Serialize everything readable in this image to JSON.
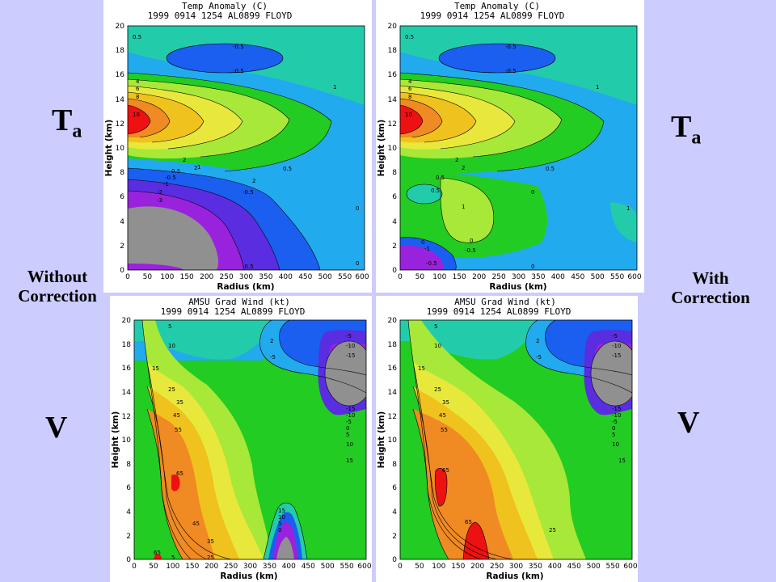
{
  "labels": {
    "ta_symbol": "T",
    "ta_sub": "a",
    "v_symbol": "V",
    "without_line1": "Without",
    "without_line2": "Correction",
    "with_line1": "With",
    "with_line2": "Correction"
  },
  "panels": [
    {
      "id": "ta-without",
      "title1": "Temp Anomaly (C)",
      "title2": "1999 0914 1254 AL0899 FLOYD",
      "xlabel": "Radius (km)",
      "ylabel": "Height (km)"
    },
    {
      "id": "ta-with",
      "title1": "Temp Anomaly (C)",
      "title2": "1999 0914 1254 AL0899 FLOYD",
      "xlabel": "Radius (km)",
      "ylabel": "Height (km)"
    },
    {
      "id": "v-without",
      "title1": "AMSU Grad Wind (kt)",
      "title2": "1999 0914 1254 AL0899 FLOYD",
      "xlabel": "Radius (km)",
      "ylabel": "Height (km)"
    },
    {
      "id": "v-with",
      "title1": "AMSU Grad Wind (kt)",
      "title2": "1999 0914 1254 AL0899 FLOYD",
      "xlabel": "Radius (km)",
      "ylabel": "Height (km)"
    }
  ],
  "axes": {
    "x_ticks": [
      "0",
      "50",
      "100",
      "150",
      "200",
      "250",
      "300",
      "350",
      "400",
      "450",
      "500",
      "550",
      "600"
    ],
    "y_ticks": [
      "0",
      "2",
      "4",
      "6",
      "8",
      "10",
      "12",
      "14",
      "16",
      "18",
      "20"
    ]
  },
  "contour_labels": {
    "ta-without": [
      "0.5",
      "-0.5",
      "-0.5",
      "1",
      "0.5",
      "2",
      "4",
      "6",
      "8",
      "10",
      "2",
      "1",
      "0.5",
      "2",
      "-0.5",
      "-1",
      "-2",
      "-3",
      "-0.5",
      "0",
      "0",
      "-0.5"
    ],
    "ta-with": [
      "0.5",
      "-0.5",
      "-0.5",
      "1",
      "0.5",
      "2",
      "4",
      "6",
      "8",
      "10",
      "2",
      "1",
      "0.5",
      "0.5",
      "0",
      "1",
      "0",
      "0",
      "-0.5",
      "-1",
      "-0.5",
      "0"
    ],
    "v-without": [
      "5",
      "10",
      "15",
      "25",
      "35",
      "45",
      "55",
      "65",
      "45",
      "35",
      "25",
      "65",
      "5",
      "2",
      "-5",
      "-5",
      "-10",
      "-15",
      "-15",
      "-10",
      "-5",
      "0",
      "5",
      "10",
      "15",
      "15",
      "10",
      "5",
      "0"
    ],
    "v-with": [
      "5",
      "10",
      "15",
      "25",
      "35",
      "45",
      "55",
      "65",
      "65",
      "25",
      "2",
      "-5",
      "-5",
      "-10",
      "-15",
      "-15",
      "-10",
      "-5",
      "0",
      "5",
      "10",
      "15"
    ]
  },
  "colors": {
    "background": "#ccccff",
    "red": "#ee1111",
    "orange": "#f08a22",
    "gold": "#f0c21e",
    "yellow": "#e8e83c",
    "lime": "#a8e838",
    "green": "#22cc22",
    "teal": "#22ccaa",
    "cyan": "#22aaee",
    "blue": "#1a5ff0",
    "indigo": "#5a2de0",
    "purple": "#9922dd",
    "gray": "#909090"
  }
}
